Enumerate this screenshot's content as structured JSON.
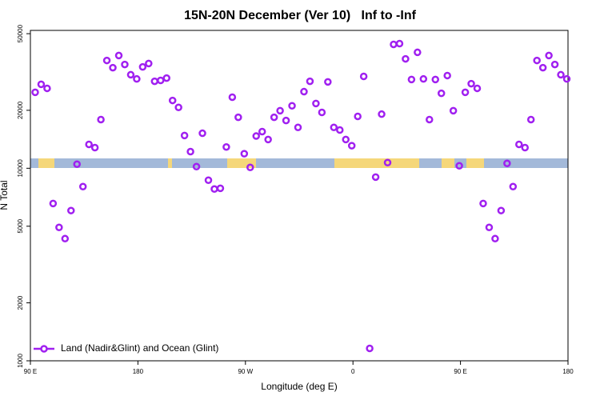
{
  "chart_data": {
    "type": "scatter",
    "title": "15N-20N December (Ver 10)   Inf to -Inf",
    "x_label": "Longitude (deg E)",
    "y_label": "N Total",
    "xlim": [
      90,
      540
    ],
    "xticks": [
      {
        "value": 90,
        "label": "90 E"
      },
      {
        "value": 180,
        "label": "180"
      },
      {
        "value": 270,
        "label": "90 W"
      },
      {
        "value": 360,
        "label": "0"
      },
      {
        "value": 450,
        "label": "90 E"
      },
      {
        "value": 540,
        "label": "180"
      }
    ],
    "ylim": [
      1000,
      52000
    ],
    "yticks": [
      1000,
      2000,
      5000,
      10000,
      20000,
      50000
    ],
    "log_y": true,
    "legend": "lower left",
    "series": [
      {
        "name": "Land (Nadir&Glint) and Ocean (Glint)",
        "color": "#a020f0",
        "x": [
          94,
          99,
          104,
          109,
          114,
          119,
          124,
          129,
          134,
          139,
          144,
          149,
          154,
          159,
          164,
          169,
          174,
          179,
          184,
          189,
          194,
          199,
          204,
          209,
          214,
          219,
          224,
          229,
          234,
          239,
          244,
          249,
          254,
          259,
          264,
          269,
          274,
          279,
          284,
          289,
          294,
          299,
          304,
          309,
          314,
          319,
          324,
          329,
          334,
          339,
          344,
          349,
          354,
          359,
          364,
          369,
          374,
          379,
          384,
          389,
          394,
          399,
          404,
          409,
          414,
          419,
          424,
          429,
          434,
          439,
          444,
          449,
          454,
          459,
          464,
          469,
          474,
          479,
          484,
          489,
          494,
          499,
          504,
          509,
          514,
          519,
          524,
          529,
          534,
          539
        ],
        "values": [
          24800,
          27300,
          26000,
          6560,
          4930,
          4310,
          6030,
          10500,
          8030,
          13300,
          12800,
          17900,
          36300,
          33300,
          38500,
          34600,
          30600,
          29100,
          33600,
          35000,
          28300,
          28600,
          29400,
          22500,
          20700,
          14800,
          12200,
          10200,
          15200,
          8670,
          7800,
          7870,
          12900,
          23400,
          18400,
          11900,
          10100,
          14700,
          15500,
          14100,
          18400,
          19900,
          17700,
          21100,
          16300,
          25000,
          28300,
          21700,
          19500,
          28100,
          16300,
          15800,
          14100,
          13100,
          18600,
          30000,
          1160,
          9000,
          19100,
          10700,
          44000,
          44400,
          37000,
          28900,
          40000,
          29100,
          17900,
          28900,
          24500,
          30300,
          19900,
          10300,
          24800,
          27500,
          26000,
          6560,
          4930,
          4310,
          6030,
          10600,
          8030,
          13300,
          12800,
          17900,
          36300,
          33300,
          38500,
          34600,
          30600,
          29100
        ]
      }
    ]
  }
}
